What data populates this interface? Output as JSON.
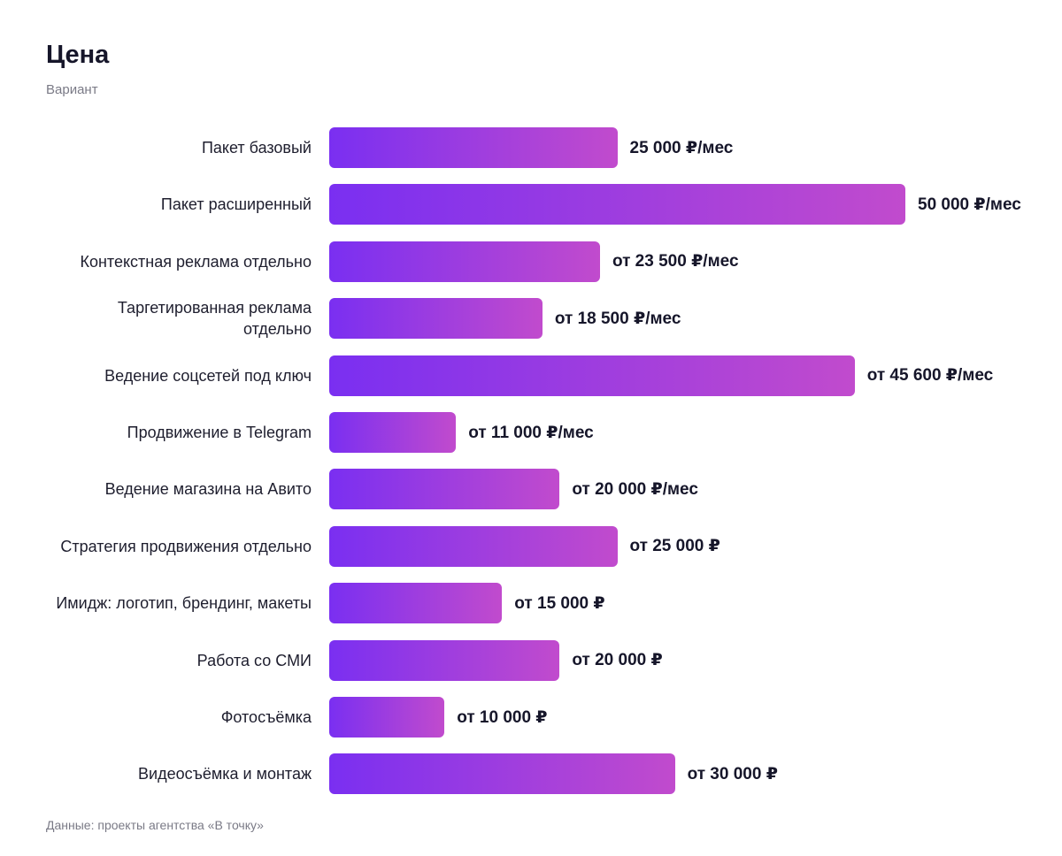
{
  "chart_data": {
    "type": "bar",
    "orientation": "horizontal",
    "title": "Цена",
    "subtitle": "Вариант",
    "categories": [
      "Пакет базовый",
      "Пакет расширенный",
      "Контекстная реклама отдельно",
      "Таргетированная реклама отдельно",
      "Ведение соцсетей под ключ",
      "Продвижение в Telegram",
      "Ведение магазина на Авито",
      "Стратегия продвижения отдельно",
      "Имидж: логотип, брендинг, макеты",
      "Работа со СМИ",
      "Фотосъёмка",
      "Видеосъёмка и монтаж"
    ],
    "values": [
      25000,
      50000,
      23500,
      18500,
      45600,
      11000,
      20000,
      25000,
      15000,
      20000,
      10000,
      30000
    ],
    "value_labels": [
      "25 000 ₽/мес",
      "50 000 ₽/мес",
      "от 23 500 ₽/мес",
      "от 18 500 ₽/мес",
      "от 45 600 ₽/мес",
      "от 11 000 ₽/мес",
      "от 20 000 ₽/мес",
      "от 25 000 ₽",
      "от 15 000 ₽",
      "от 20 000 ₽",
      "от 10 000 ₽",
      "от 30 000 ₽"
    ],
    "gradient": [
      "#7a2ff1",
      "#c14bcd"
    ],
    "source": "Данные: проекты агентства «В точку»"
  }
}
